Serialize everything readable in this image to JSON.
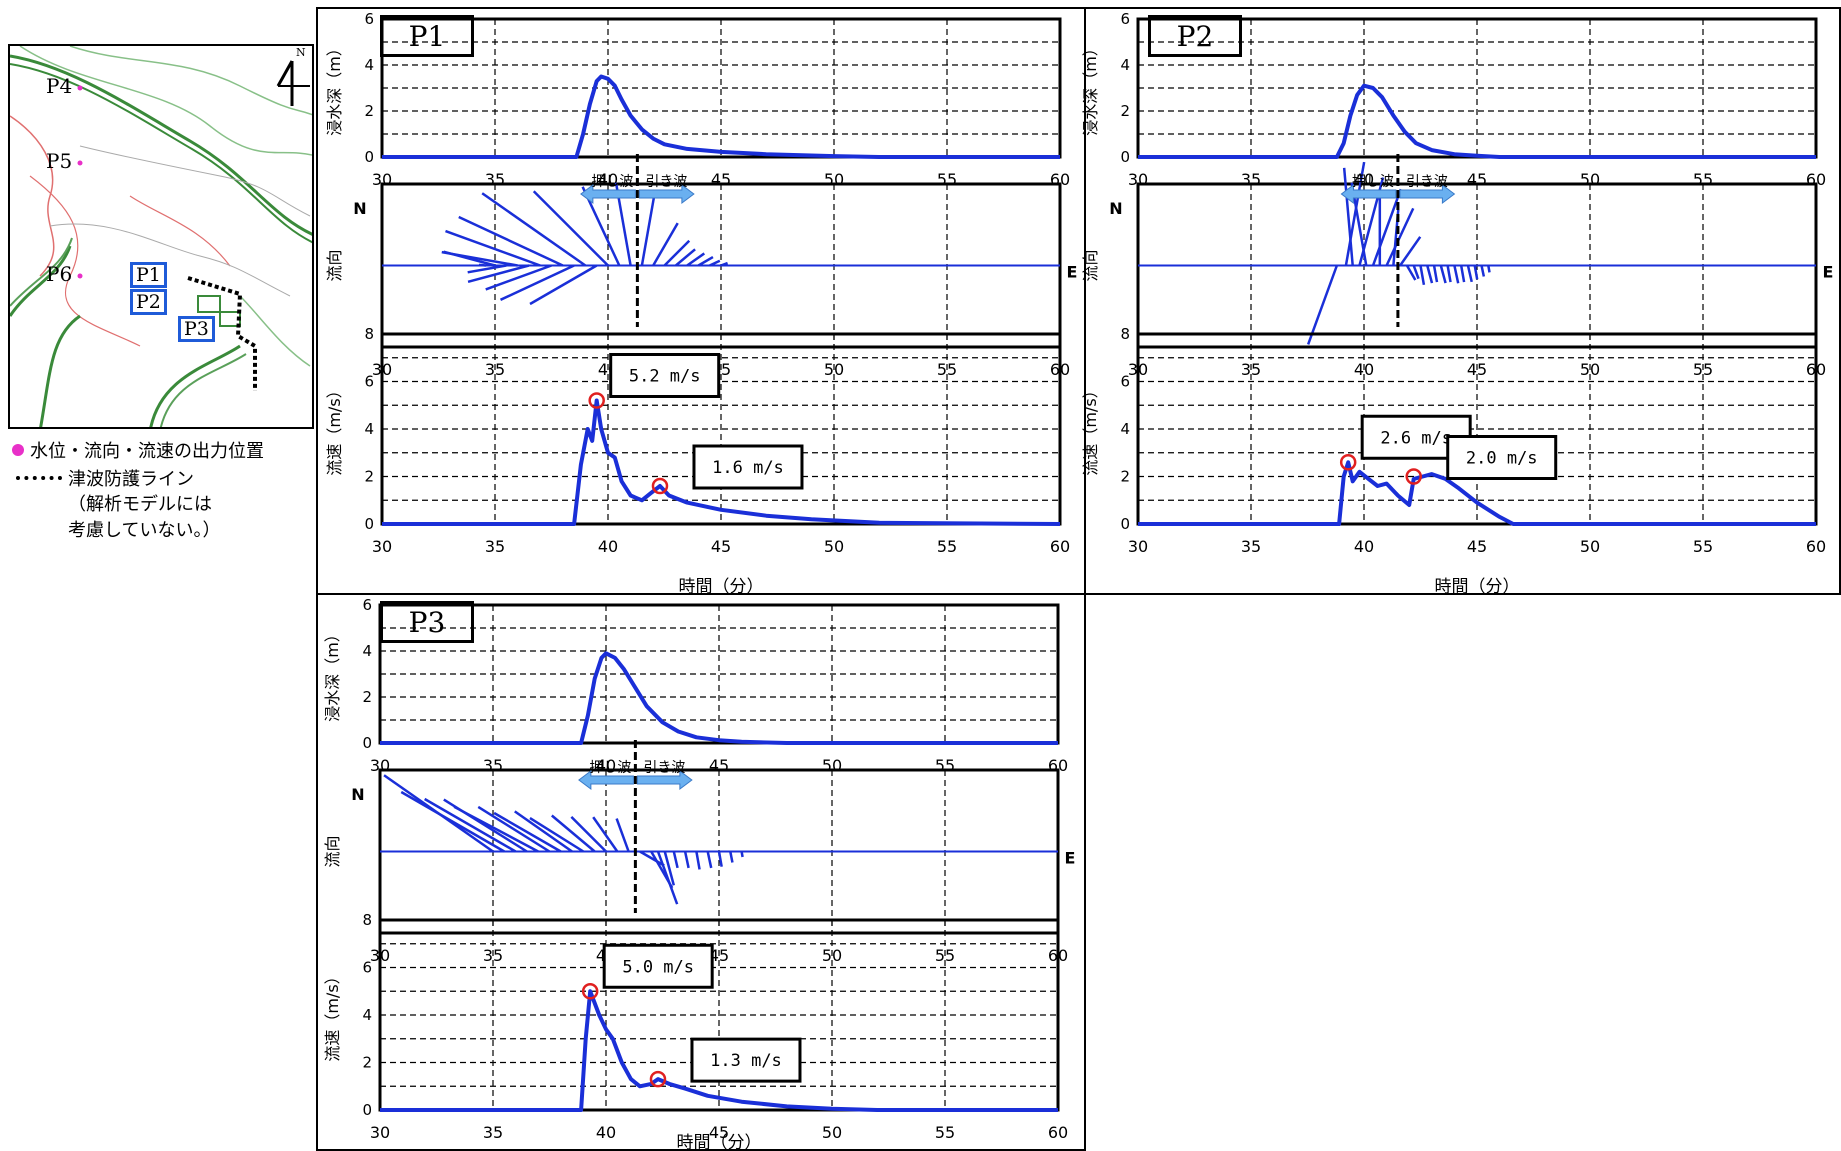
{
  "map": {
    "north_label": "N",
    "points": [
      "P4",
      "P5",
      "P6"
    ],
    "boxes": [
      "P1",
      "P2",
      "P3"
    ]
  },
  "legend": {
    "output_point": "水位・流向・流速の出力位置",
    "defense_line": "津波防護ライン",
    "note_line1": "（解析モデルには",
    "note_line2": "考慮していない。）"
  },
  "colors": {
    "series": "#1a2fd8",
    "marker": "#e02020",
    "arrow": "#6ab0f0",
    "point": "#e830c8"
  },
  "chart_data": [
    {
      "type": "line",
      "panel": "P1",
      "x_ticks": [
        "30",
        "35",
        "40",
        "45",
        "50",
        "55",
        "60"
      ],
      "xlim": [
        30,
        60
      ],
      "xlabel": "時間（分）",
      "depth": {
        "ylabel": "浸水深（m）",
        "ylim": [
          0,
          6
        ],
        "y_ticks": [
          "0",
          "2",
          "4",
          "6"
        ],
        "x": [
          30,
          38.6,
          38.9,
          39.2,
          39.5,
          39.7,
          40.0,
          40.3,
          40.6,
          41.0,
          41.5,
          42.0,
          42.5,
          43.5,
          45,
          47,
          50,
          52,
          60
        ],
        "values": [
          0,
          0,
          1.0,
          2.3,
          3.3,
          3.5,
          3.4,
          3.1,
          2.5,
          1.8,
          1.2,
          0.8,
          0.55,
          0.35,
          0.22,
          0.12,
          0.04,
          0,
          0
        ]
      },
      "direction": {
        "ylabel": "流向",
        "n_label": "N",
        "e_label": "E",
        "push_label": "押し波",
        "pull_label": "引き波",
        "divider_x": 41.3,
        "x": [
          34.6,
          35,
          35.5,
          36,
          36.5,
          37,
          37.5,
          38,
          38.5,
          39,
          39.5,
          40,
          40.5,
          41,
          41.5,
          42,
          42.5,
          43,
          43.5,
          44,
          44.5,
          45
        ],
        "angles": [
          175,
          165,
          190,
          170,
          195,
          160,
          200,
          155,
          205,
          145,
          210,
          135,
          115,
          100,
          80,
          60,
          45,
          40,
          35,
          30,
          25,
          20
        ],
        "lengths": [
          0.05,
          0.38,
          0.28,
          0.55,
          0.45,
          0.72,
          0.5,
          0.82,
          0.58,
          0.9,
          0.55,
          0.75,
          0.62,
          0.6,
          0.55,
          0.35,
          0.25,
          0.18,
          0.15,
          0.12,
          0.08,
          0.05
        ]
      },
      "velocity": {
        "ylabel": "流速（m/s）",
        "ylim": [
          0,
          8
        ],
        "y_ticks": [
          "0",
          "2",
          "4",
          "6",
          "8"
        ],
        "x": [
          30,
          38.5,
          38.8,
          39.1,
          39.3,
          39.5,
          39.7,
          40.0,
          40.3,
          40.6,
          41.0,
          41.5,
          41.9,
          42.3,
          42.7,
          43.5,
          45,
          47,
          49,
          52,
          60
        ],
        "values": [
          0,
          0,
          2.5,
          4.0,
          3.5,
          5.2,
          4.0,
          3.0,
          2.8,
          1.8,
          1.2,
          1.0,
          1.3,
          1.6,
          1.2,
          0.9,
          0.6,
          0.35,
          0.2,
          0.05,
          0
        ],
        "annotations": [
          {
            "label": "5.2 m/s",
            "x": 39.5,
            "y": 5.2
          },
          {
            "label": "1.6 m/s",
            "x": 42.3,
            "y": 1.6
          }
        ]
      }
    },
    {
      "type": "line",
      "panel": "P2",
      "x_ticks": [
        "30",
        "35",
        "40",
        "45",
        "50",
        "55",
        "60"
      ],
      "xlim": [
        30,
        60
      ],
      "xlabel": "時間（分）",
      "depth": {
        "ylabel": "浸水深（m）",
        "ylim": [
          0,
          6
        ],
        "y_ticks": [
          "0",
          "2",
          "4",
          "6"
        ],
        "x": [
          30,
          38.8,
          39.1,
          39.4,
          39.7,
          40.0,
          40.4,
          40.8,
          41.3,
          41.8,
          42.3,
          43,
          44,
          45,
          46,
          60
        ],
        "values": [
          0,
          0,
          0.6,
          1.8,
          2.7,
          3.1,
          3.0,
          2.6,
          1.8,
          1.1,
          0.6,
          0.3,
          0.12,
          0.05,
          0,
          0
        ]
      },
      "direction": {
        "ylabel": "流向",
        "n_label": "N",
        "e_label": "E",
        "push_label": "押し波",
        "pull_label": "引き波",
        "divider_x": 41.5,
        "x": [
          38.8,
          39.2,
          39.5,
          39.8,
          40.1,
          40.4,
          40.7,
          41,
          41.3,
          41.6,
          41.9,
          42.2,
          42.5,
          42.8,
          43.1,
          43.4,
          43.7,
          44,
          44.3,
          44.6,
          44.9,
          45.2,
          45.5
        ],
        "angles": [
          250,
          80,
          95,
          75,
          100,
          70,
          90,
          65,
          85,
          55,
          300,
          290,
          280,
          285,
          280,
          285,
          280,
          282,
          280,
          283,
          280,
          282,
          280
        ],
        "lengths": [
          0.6,
          0.75,
          0.7,
          0.65,
          0.6,
          0.58,
          0.5,
          0.45,
          0.4,
          0.25,
          0.12,
          0.1,
          0.14,
          0.13,
          0.12,
          0.13,
          0.12,
          0.13,
          0.12,
          0.12,
          0.1,
          0.08,
          0.05
        ]
      },
      "velocity": {
        "ylabel": "流速（m/s）",
        "ylim": [
          0,
          8
        ],
        "y_ticks": [
          "0",
          "2",
          "4",
          "6",
          "8"
        ],
        "x": [
          30,
          38.9,
          39.1,
          39.3,
          39.5,
          39.8,
          40.2,
          40.6,
          41.0,
          41.5,
          42.0,
          42.2,
          42.6,
          43.0,
          43.6,
          44.2,
          45,
          46,
          46.6,
          60
        ],
        "values": [
          0,
          0,
          2.0,
          2.6,
          1.8,
          2.2,
          1.9,
          1.6,
          1.7,
          1.2,
          0.8,
          1.9,
          2.0,
          2.1,
          1.9,
          1.5,
          0.9,
          0.3,
          0,
          0
        ],
        "annotations": [
          {
            "label": "2.6 m/s",
            "x": 39.3,
            "y": 2.6
          },
          {
            "label": "2.0 m/s",
            "x": 42.2,
            "y": 2.0
          }
        ]
      }
    },
    {
      "type": "line",
      "panel": "P3",
      "x_ticks": [
        "30",
        "35",
        "40",
        "45",
        "50",
        "55",
        "60"
      ],
      "xlim": [
        30,
        60
      ],
      "xlabel": "時間（分）",
      "depth": {
        "ylabel": "浸水深（m）",
        "ylim": [
          0,
          6
        ],
        "y_ticks": [
          "0",
          "2",
          "4",
          "6"
        ],
        "x": [
          30,
          38.9,
          39.2,
          39.5,
          39.8,
          40.0,
          40.4,
          40.8,
          41.3,
          41.8,
          42.5,
          43.2,
          44,
          45,
          46,
          48,
          60
        ],
        "values": [
          0,
          0,
          1.2,
          2.8,
          3.7,
          3.9,
          3.7,
          3.2,
          2.4,
          1.6,
          0.9,
          0.5,
          0.25,
          0.12,
          0.05,
          0,
          0
        ]
      },
      "direction": {
        "ylabel": "流向",
        "n_label": "N",
        "e_label": "E",
        "push_label": "押し波",
        "pull_label": "引き波",
        "divider_x": 41.3,
        "x": [
          35,
          35.5,
          36,
          36.5,
          37,
          37.5,
          38,
          38.5,
          39,
          39.5,
          40,
          40.5,
          41,
          41.5,
          42,
          42.3,
          42.6,
          43,
          43.5,
          44,
          44.5,
          45,
          45.5,
          46
        ],
        "angles": [
          145,
          150,
          150,
          148,
          152,
          148,
          150,
          145,
          148,
          140,
          135,
          125,
          110,
          330,
          300,
          290,
          285,
          283,
          282,
          280,
          282,
          280,
          281,
          280
        ],
        "lengths": [
          0.95,
          0.85,
          0.75,
          0.7,
          0.68,
          0.6,
          0.55,
          0.5,
          0.45,
          0.4,
          0.35,
          0.3,
          0.25,
          0.2,
          0.3,
          0.4,
          0.25,
          0.12,
          0.12,
          0.13,
          0.12,
          0.11,
          0.08,
          0.04
        ]
      },
      "velocity": {
        "ylabel": "流速（m/s）",
        "ylim": [
          0,
          8
        ],
        "y_ticks": [
          "0",
          "2",
          "4",
          "6",
          "8"
        ],
        "x": [
          30,
          38.9,
          39.1,
          39.3,
          39.5,
          39.7,
          40.0,
          40.3,
          40.7,
          41.1,
          41.5,
          42.0,
          42.3,
          42.8,
          43.5,
          44.5,
          46,
          48,
          50,
          52,
          60
        ],
        "values": [
          0,
          0,
          3.0,
          5.0,
          4.5,
          4.0,
          3.4,
          3.0,
          2.0,
          1.3,
          1.0,
          1.1,
          1.3,
          1.1,
          0.9,
          0.6,
          0.35,
          0.15,
          0.05,
          0,
          0
        ],
        "annotations": [
          {
            "label": "5.0 m/s",
            "x": 39.3,
            "y": 5.0
          },
          {
            "label": "1.3 m/s",
            "x": 42.3,
            "y": 1.3
          }
        ]
      }
    }
  ]
}
